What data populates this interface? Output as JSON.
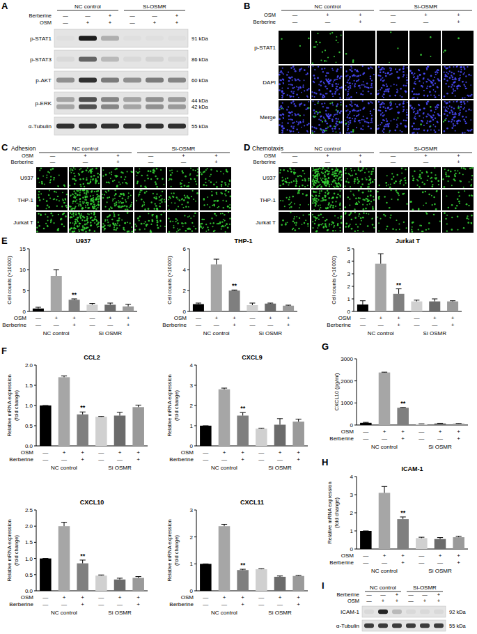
{
  "chart_data": [
    {
      "type": "bar",
      "panel_label": "E",
      "title": "U937",
      "y_label": [
        "Cell counts (×10000)"
      ],
      "categories": [
        null,
        null,
        null,
        null,
        null,
        null
      ],
      "values": [
        0.7,
        8.5,
        2.8,
        1.6,
        1.6,
        1.2
      ],
      "errors": [
        0.3,
        1.5,
        0.2,
        0.3,
        0.4,
        0.5
      ],
      "colors": [
        "#000000",
        "#a6a6a6",
        "#7f7f7f",
        "#d0d0d0",
        "#6b6b6b",
        "#9a9a9a"
      ],
      "ylim": [
        0,
        15
      ],
      "yticks": [
        0,
        5,
        10,
        15
      ],
      "treatments": [
        {
          "label": "OSM",
          "marks": [
            "—",
            "+",
            "+",
            "—",
            "+",
            "+"
          ]
        },
        {
          "label": "Berberine",
          "marks": [
            "—",
            "—",
            "+",
            "—",
            "—",
            "+"
          ]
        }
      ],
      "groups": [
        "NC control",
        "Si OSMR"
      ],
      "annotations": [
        {
          "index": 2,
          "text": "**"
        }
      ]
    },
    {
      "type": "bar",
      "title": "THP-1",
      "y_label": [
        "Cell counts (×10000)"
      ],
      "categories": [
        null,
        null,
        null,
        null,
        null,
        null
      ],
      "values": [
        0.7,
        4.5,
        2.0,
        0.6,
        0.75,
        0.55
      ],
      "errors": [
        0.1,
        0.5,
        0.05,
        0.2,
        0.05,
        0.05
      ],
      "colors": [
        "#000000",
        "#a6a6a6",
        "#7f7f7f",
        "#d0d0d0",
        "#6b6b6b",
        "#9a9a9a"
      ],
      "ylim": [
        0,
        6
      ],
      "yticks": [
        0,
        2,
        4,
        6
      ],
      "treatments": [
        {
          "label": "OSM",
          "marks": [
            "—",
            "+",
            "+",
            "—",
            "+",
            "+"
          ]
        },
        {
          "label": "Berberine",
          "marks": [
            "—",
            "—",
            "+",
            "—",
            "—",
            "+"
          ]
        }
      ],
      "groups": [
        "NC control",
        "Si OSMR"
      ],
      "annotations": [
        {
          "index": 2,
          "text": "**"
        }
      ]
    },
    {
      "type": "bar",
      "title": "Jurkat T",
      "y_label": [
        "Cell counts (×10000)"
      ],
      "categories": [
        null,
        null,
        null,
        null,
        null,
        null
      ],
      "values": [
        0.55,
        3.8,
        1.4,
        0.8,
        0.8,
        0.8
      ],
      "errors": [
        0.3,
        0.8,
        0.4,
        0.1,
        0.2,
        0.05
      ],
      "colors": [
        "#000000",
        "#a6a6a6",
        "#7f7f7f",
        "#d0d0d0",
        "#6b6b6b",
        "#9a9a9a"
      ],
      "ylim": [
        0,
        5
      ],
      "yticks": [
        0,
        1,
        2,
        3,
        4,
        5
      ],
      "treatments": [
        {
          "label": "OSM",
          "marks": [
            "—",
            "+",
            "+",
            "—",
            "+",
            "+"
          ]
        },
        {
          "label": "Berberine",
          "marks": [
            "—",
            "—",
            "+",
            "—",
            "—",
            "+"
          ]
        }
      ],
      "groups": [
        "NC control",
        "Si OSMR"
      ],
      "annotations": [
        {
          "index": 2,
          "text": "**"
        }
      ]
    },
    {
      "type": "bar",
      "panel_label": "F",
      "title": "CCL2",
      "y_label": [
        "Relative mRNA expression",
        "(fold change)"
      ],
      "categories": [
        null,
        null,
        null,
        null,
        null,
        null
      ],
      "values": [
        1.0,
        1.7,
        0.78,
        0.72,
        0.75,
        0.96
      ],
      "errors": [
        0,
        0.03,
        0.06,
        0.01,
        0.08,
        0.05
      ],
      "colors": [
        "#000000",
        "#a6a6a6",
        "#7f7f7f",
        "#d0d0d0",
        "#6b6b6b",
        "#9a9a9a"
      ],
      "ylim": [
        0,
        2
      ],
      "yticks": [
        {
          "value": 0,
          "label": "0.0"
        },
        0.5,
        {
          "value": 1,
          "label": "1.0"
        },
        1.5,
        {
          "value": 2,
          "label": "2.0"
        }
      ],
      "treatments": [
        {
          "label": "OSM",
          "marks": [
            "—",
            "+",
            "+",
            "—",
            "+",
            "+"
          ]
        },
        {
          "label": "Berberine",
          "marks": [
            "—",
            "—",
            "+",
            "—",
            "—",
            "+"
          ]
        }
      ],
      "groups": [
        "NC control",
        "Si OSMR"
      ],
      "annotations": [
        {
          "index": 2,
          "text": "**"
        }
      ]
    },
    {
      "type": "bar",
      "title": "CXCL9",
      "y_label": [
        "Relative mRNA expression",
        "(fold change)"
      ],
      "categories": [
        null,
        null,
        null,
        null,
        null,
        null
      ],
      "values": [
        1.0,
        2.8,
        1.5,
        0.85,
        1.05,
        1.2
      ],
      "errors": [
        0,
        0.06,
        0.15,
        0.03,
        0.3,
        0.12
      ],
      "colors": [
        "#000000",
        "#a6a6a6",
        "#7f7f7f",
        "#d0d0d0",
        "#6b6b6b",
        "#9a9a9a"
      ],
      "ylim": [
        0,
        4
      ],
      "yticks": [
        0,
        1,
        2,
        3,
        4
      ],
      "treatments": [
        {
          "label": "OSM",
          "marks": [
            "—",
            "+",
            "+",
            "—",
            "+",
            "+"
          ]
        },
        {
          "label": "Berberine",
          "marks": [
            "—",
            "—",
            "+",
            "—",
            "—",
            "+"
          ]
        }
      ],
      "groups": [
        "NC control",
        "Si OSMR"
      ],
      "annotations": [
        {
          "index": 2,
          "text": "**"
        }
      ]
    },
    {
      "type": "bar",
      "title": "CXCL10",
      "y_label": [
        "Relative mRNA expression",
        "(fold change)"
      ],
      "categories": [
        null,
        null,
        null,
        null,
        null,
        null
      ],
      "values": [
        1.0,
        2.0,
        0.85,
        0.47,
        0.35,
        0.4
      ],
      "errors": [
        0,
        0.12,
        0.1,
        0.02,
        0.04,
        0.04
      ],
      "colors": [
        "#000000",
        "#a6a6a6",
        "#7f7f7f",
        "#d0d0d0",
        "#6b6b6b",
        "#9a9a9a"
      ],
      "ylim": [
        0,
        2.5
      ],
      "yticks": [
        {
          "value": 0,
          "label": "0.0"
        },
        0.5,
        {
          "value": 1,
          "label": "1.0"
        },
        1.5,
        {
          "value": 2,
          "label": "2.0"
        },
        2.5
      ],
      "treatments": [
        {
          "label": "OSM",
          "marks": [
            "—",
            "+",
            "+",
            "—",
            "+",
            "+"
          ]
        },
        {
          "label": "Berberine",
          "marks": [
            "—",
            "—",
            "+",
            "—",
            "—",
            "+"
          ]
        }
      ],
      "groups": [
        "NC control",
        "Si OSMR"
      ],
      "annotations": [
        {
          "index": 2,
          "text": "**"
        }
      ]
    },
    {
      "type": "bar",
      "title": "CXCL11",
      "y_label": [
        "Relative mRNA expression",
        "(fold change)"
      ],
      "categories": [
        null,
        null,
        null,
        null,
        null,
        null
      ],
      "values": [
        1.0,
        2.4,
        0.77,
        0.8,
        0.52,
        0.55
      ],
      "errors": [
        0,
        0.07,
        0.03,
        0.02,
        0.03,
        0.02
      ],
      "colors": [
        "#000000",
        "#a6a6a6",
        "#7f7f7f",
        "#d0d0d0",
        "#6b6b6b",
        "#9a9a9a"
      ],
      "ylim": [
        0,
        3
      ],
      "yticks": [
        0,
        1,
        2,
        3
      ],
      "treatments": [
        {
          "label": "OSM",
          "marks": [
            "—",
            "+",
            "+",
            "—",
            "+",
            "+"
          ]
        },
        {
          "label": "Berberine",
          "marks": [
            "—",
            "—",
            "+",
            "—",
            "—",
            "+"
          ]
        }
      ],
      "groups": [
        "NC control",
        "Si OSMR"
      ],
      "annotations": [
        {
          "index": 2,
          "text": "**"
        }
      ]
    },
    {
      "type": "bar",
      "panel_label": "G",
      "y_label": [
        "CXCL10 (pg/ml)"
      ],
      "categories": [
        null,
        null,
        null,
        null,
        null,
        null
      ],
      "values": [
        100,
        2380,
        780,
        40,
        70,
        60
      ],
      "errors": [
        20,
        15,
        15,
        10,
        10,
        10
      ],
      "colors": [
        "#000000",
        "#a6a6a6",
        "#7f7f7f",
        "#d0d0d0",
        "#6b6b6b",
        "#9a9a9a"
      ],
      "ylim": [
        0,
        3000
      ],
      "yticks": [
        0,
        1000,
        2000,
        3000
      ],
      "treatments": [
        {
          "label": "OSM",
          "marks": [
            "—",
            "+",
            "+",
            "—",
            "+",
            "+"
          ]
        },
        {
          "label": "Berberine",
          "marks": [
            "—",
            "—",
            "+",
            "—",
            "—",
            "+"
          ]
        }
      ],
      "groups": [
        "NC control",
        "Si OSMR"
      ],
      "annotations": [
        {
          "index": 2,
          "text": "**"
        }
      ]
    },
    {
      "type": "bar",
      "panel_label": "H",
      "title": "ICAM-1",
      "y_label": [
        "Relative mRNA expression",
        "(fold change)"
      ],
      "categories": [
        null,
        null,
        null,
        null,
        null,
        null
      ],
      "values": [
        1.0,
        3.1,
        1.65,
        0.6,
        0.55,
        0.65
      ],
      "errors": [
        0,
        0.35,
        0.12,
        0.05,
        0.08,
        0.05
      ],
      "colors": [
        "#000000",
        "#a6a6a6",
        "#7f7f7f",
        "#d0d0d0",
        "#6b6b6b",
        "#9a9a9a"
      ],
      "ylim": [
        0,
        4
      ],
      "yticks": [
        0,
        1,
        2,
        3,
        4
      ],
      "treatments": [
        {
          "label": "OSM",
          "marks": [
            "—",
            "+",
            "+",
            "—",
            "+",
            "+"
          ]
        },
        {
          "label": "Berberine",
          "marks": [
            "—",
            "—",
            "+",
            "—",
            "—",
            "+"
          ]
        }
      ],
      "groups": [
        "NC control",
        "Si OSMR"
      ],
      "annotations": [
        {
          "index": 2,
          "text": "**"
        }
      ]
    }
  ],
  "figure": {
    "panels": [
      {
        "label": "A",
        "groups": [
          "NC control",
          "Si-OSMR"
        ],
        "treatments": [
          {
            "label": "Berberine",
            "marks": [
              "—",
              "—",
              "+",
              "—",
              "—",
              "+"
            ]
          },
          {
            "label": "OSM",
            "marks": [
              "—",
              "+",
              "+",
              "—",
              "+",
              "+"
            ]
          }
        ],
        "blots": [
          {
            "name": "p-STAT1",
            "sizes": [
              "91 kDa"
            ],
            "band_intensity": [
              0.02,
              0.95,
              0.25,
              0.02,
              0.02,
              0.02
            ]
          },
          {
            "name": "p-STAT3",
            "sizes": [
              "86 kDa"
            ],
            "band_intensity": [
              0.05,
              0.6,
              0.2,
              0.05,
              0.08,
              0.05
            ]
          },
          {
            "name": "p-AKT",
            "sizes": [
              "60 kDa"
            ],
            "band_intensity": [
              0.4,
              0.85,
              0.5,
              0.4,
              0.5,
              0.45
            ]
          },
          {
            "name": "p-ERK",
            "sizes": [
              "44 kDa",
              "42 kDa"
            ],
            "band_intensity": [
              0.3,
              0.7,
              0.45,
              0.3,
              0.4,
              0.35
            ]
          },
          {
            "name": "α-Tubulin",
            "sizes": [
              "55 kDa"
            ],
            "band_intensity": [
              0.85,
              0.85,
              0.85,
              0.85,
              0.85,
              0.85
            ]
          }
        ]
      },
      {
        "label": "B",
        "groups": [
          "NC control",
          "Si-OSMR"
        ],
        "treatments": [
          {
            "label": "OSM",
            "marks": [
              "—",
              "+",
              "+",
              "—",
              "+",
              "+"
            ]
          },
          {
            "label": "Berberine",
            "marks": [
              "—",
              "—",
              "+",
              "—",
              "—",
              "+"
            ]
          }
        ],
        "rows": [
          {
            "label": "p-STAT1",
            "color": "#3cdc3c",
            "density": [
              0.01,
              0.08,
              0.01,
              0.01,
              0.01,
              0.01
            ]
          },
          {
            "label": "DAPI",
            "color": "#4a4aff",
            "density": [
              0.3,
              0.3,
              0.3,
              0.3,
              0.3,
              0.3
            ]
          },
          {
            "label": "Merge"
          }
        ]
      },
      {
        "label": "C",
        "title": "Adhesion",
        "groups": [
          "NC control",
          "Si-OSMR"
        ],
        "treatments": [
          {
            "label": "OSM",
            "marks": [
              "—",
              "+",
              "+",
              "—",
              "+",
              "+"
            ]
          },
          {
            "label": "Berberine",
            "marks": [
              "—",
              "—",
              "+",
              "—",
              "—",
              "+"
            ]
          }
        ],
        "rows": [
          {
            "label": "U937",
            "color": "#36d836",
            "density": [
              0.15,
              0.35,
              0.2,
              0.2,
              0.2,
              0.2
            ]
          },
          {
            "label": "THP-1",
            "color": "#36d836",
            "density": [
              0.2,
              0.7,
              0.35,
              0.25,
              0.2,
              0.2
            ]
          },
          {
            "label": "Jurkat T",
            "color": "#36d836",
            "density": [
              0.2,
              0.6,
              0.3,
              0.25,
              0.2,
              0.25
            ]
          }
        ]
      },
      {
        "label": "D",
        "title": "Chemotaxis",
        "groups": [
          "NC control",
          "Si-OSMR"
        ],
        "treatments": [
          {
            "label": "OSM",
            "marks": [
              "—",
              "+",
              "+",
              "—",
              "+",
              "+"
            ]
          },
          {
            "label": "Berberine",
            "marks": [
              "—",
              "—",
              "+",
              "—",
              "—",
              "+"
            ]
          }
        ],
        "rows": [
          {
            "label": "U937",
            "color": "#36d836",
            "density": [
              0.3,
              0.9,
              0.3,
              0.15,
              0.2,
              0.2
            ]
          },
          {
            "label": "THP-1",
            "color": "#36d836",
            "density": [
              0.15,
              0.45,
              0.25,
              0.1,
              0.1,
              0.1
            ]
          },
          {
            "label": "Jurkat T",
            "color": "#36d836",
            "density": [
              0.15,
              0.3,
              0.2,
              0.1,
              0.1,
              0.1
            ]
          }
        ]
      },
      {
        "label": "I",
        "groups": [
          "NC control",
          "Si-OSMR"
        ],
        "treatments": [
          {
            "label": "Berberine",
            "marks": [
              "—",
              "—",
              "+",
              "—",
              "—",
              "+"
            ]
          },
          {
            "label": "OSM",
            "marks": [
              "—",
              "+",
              "+",
              "—",
              "+",
              "+"
            ]
          }
        ],
        "blots": [
          {
            "name": "ICAM-1",
            "sizes": [
              "92 kDa"
            ],
            "band_intensity": [
              0.05,
              0.9,
              0.2,
              0.05,
              0.05,
              0.05
            ]
          },
          {
            "name": "α-Tubulin",
            "sizes": [
              "55 kDa"
            ],
            "band_intensity": [
              0.8,
              0.8,
              0.8,
              0.8,
              0.8,
              0.8
            ]
          }
        ]
      }
    ]
  }
}
